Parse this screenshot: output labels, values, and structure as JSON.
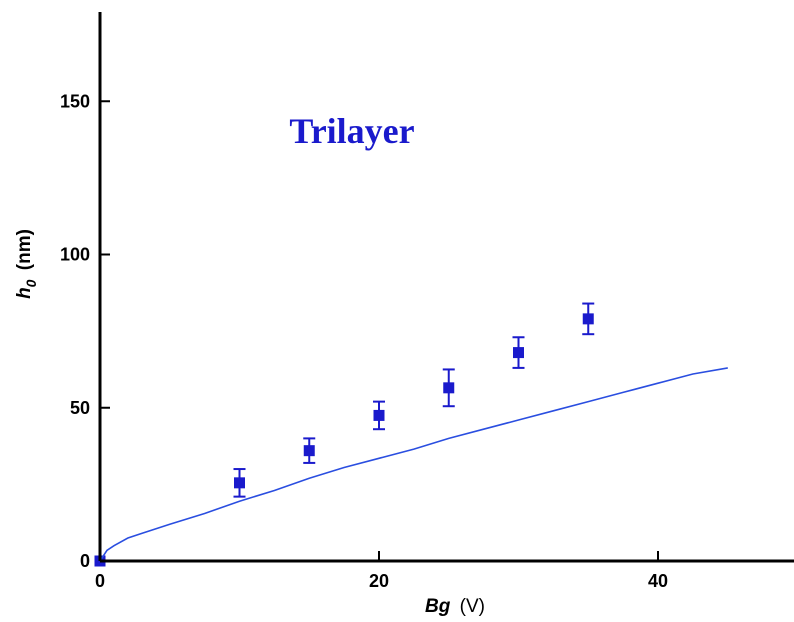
{
  "chart_data": {
    "type": "scatter",
    "annotation": "Trilayer",
    "xlabel": {
      "symbol": "Bg",
      "unit": "(V)"
    },
    "ylabel": {
      "symbol": "h",
      "subscript": "0",
      "unit": "(nm)"
    },
    "xlim": [
      0,
      50
    ],
    "ylim": [
      0,
      180
    ],
    "x_ticks": [
      "0",
      "20",
      "40"
    ],
    "y_ticks": [
      "0",
      "50",
      "100",
      "150"
    ],
    "grid": false,
    "colors": {
      "points": "#1a1acc",
      "curve": "#2a4ee0",
      "annotation": "#1a1acc",
      "axes": "#000000"
    },
    "series": [
      {
        "kind": "points_with_error",
        "x": [
          0,
          10,
          15,
          20,
          25,
          30,
          35
        ],
        "y": [
          0,
          25.5,
          36,
          47.5,
          56.5,
          68,
          79
        ],
        "err": [
          0,
          4.5,
          4,
          4.5,
          6,
          5,
          5
        ]
      },
      {
        "kind": "curve",
        "x": [
          0,
          0.5,
          1,
          2,
          3,
          5,
          7.5,
          10,
          12.5,
          15,
          17.5,
          20,
          22.5,
          25,
          27.5,
          30,
          32.5,
          35,
          37.5,
          40,
          42.5,
          45
        ],
        "y": [
          0,
          3.5,
          5,
          7.5,
          9,
          12,
          15.5,
          19.5,
          23,
          27,
          30.5,
          33.5,
          36.5,
          40,
          43,
          46,
          49,
          52,
          55,
          58,
          61,
          63
        ]
      }
    ]
  }
}
